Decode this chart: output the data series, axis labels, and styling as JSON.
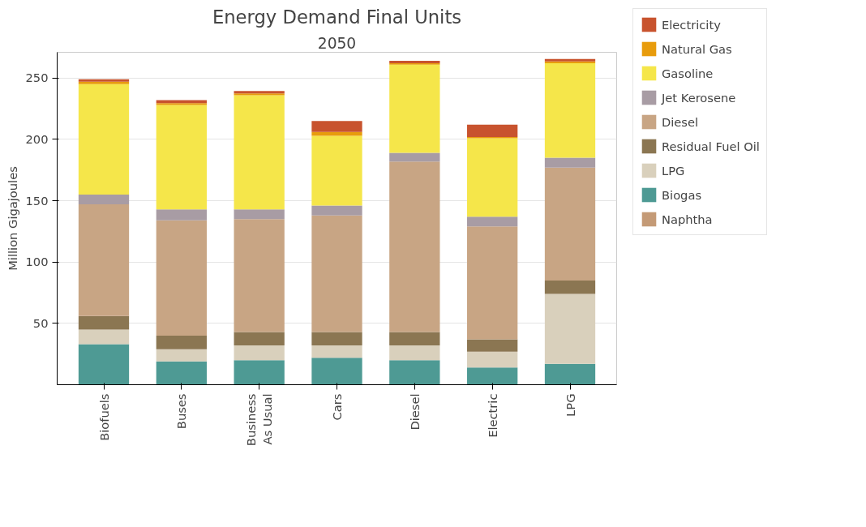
{
  "chart_data": {
    "type": "bar",
    "title": "Energy Demand Final Units",
    "subtitle": "2050",
    "ylabel": "Million Gigajoules",
    "categories": [
      "Biofuels",
      "Buses",
      "Business As Usual",
      "Cars",
      "Diesel",
      "Electric",
      "LPG"
    ],
    "stacked": true,
    "ylim": [
      0,
      271
    ],
    "yticks": [
      50,
      100,
      150,
      200,
      250
    ],
    "grid": "y",
    "legend": "right",
    "series": [
      {
        "name": "Naphtha",
        "color": "#c49a76",
        "values": [
          null,
          null,
          null,
          null,
          null,
          null,
          null
        ]
      },
      {
        "name": "Biogas",
        "color": "#4e9a94",
        "values": [
          33,
          19,
          20,
          22,
          20,
          14,
          17
        ]
      },
      {
        "name": "LPG",
        "color": "#d9d0bc",
        "values": [
          12,
          10,
          12,
          10,
          12,
          13,
          57
        ]
      },
      {
        "name": "Residual Fuel Oil",
        "color": "#8b7652",
        "values": [
          11,
          11,
          11,
          11,
          11,
          10,
          11
        ]
      },
      {
        "name": "Diesel",
        "color": "#c8a584",
        "values": [
          91,
          94,
          92,
          95,
          139,
          92,
          92
        ]
      },
      {
        "name": "Jet Kerosene",
        "color": "#a89ca4",
        "values": [
          8,
          9,
          8,
          8,
          7,
          8,
          8
        ]
      },
      {
        "name": "Gasoline",
        "color": "#f5e64a",
        "values": [
          90,
          85,
          93,
          57,
          72,
          64,
          77
        ]
      },
      {
        "name": "Natural Gas",
        "color": "#e89c0c",
        "values": [
          2,
          1.5,
          1.5,
          3,
          1,
          1,
          1.5
        ]
      },
      {
        "name": "Electricity",
        "color": "#c8532e",
        "values": [
          2,
          2.5,
          2,
          9,
          2,
          10,
          2
        ]
      }
    ]
  }
}
